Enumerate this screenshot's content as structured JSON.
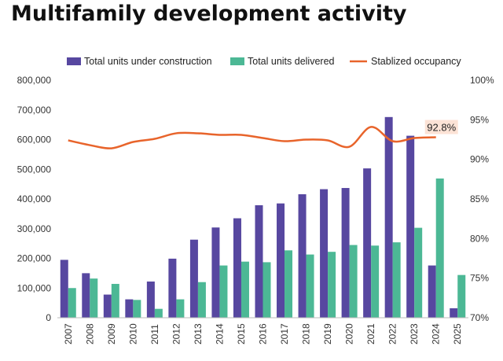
{
  "chart_data": {
    "type": "bar",
    "title": "Multifamily development activity",
    "categories": [
      "2007",
      "2008",
      "2009",
      "2010",
      "2011",
      "2012",
      "2013",
      "2014",
      "2015",
      "2016",
      "2017",
      "2018",
      "2019",
      "2020",
      "2021",
      "2022",
      "2023",
      "2024",
      "2025"
    ],
    "series": [
      {
        "name": "Total units under construction",
        "type": "bar",
        "axis": "left",
        "color": "#5747a0",
        "values": [
          195000,
          150000,
          78000,
          62000,
          122000,
          199000,
          263000,
          304000,
          335000,
          379000,
          385000,
          416000,
          433000,
          437000,
          503000,
          676000,
          613000,
          176000,
          32000
        ]
      },
      {
        "name": "Total units delivered",
        "type": "bar",
        "axis": "left",
        "color": "#4cb895",
        "values": [
          100000,
          132000,
          114000,
          60000,
          30000,
          62000,
          120000,
          176000,
          189000,
          187000,
          227000,
          213000,
          222000,
          245000,
          243000,
          254000,
          303000,
          469000,
          144000
        ]
      },
      {
        "name": "Stablized occupancy",
        "type": "line",
        "axis": "right",
        "color": "#e8642b",
        "values": [
          92.4,
          91.8,
          91.4,
          92.2,
          92.6,
          93.3,
          93.3,
          93.1,
          93.1,
          92.7,
          92.3,
          92.5,
          92.4,
          91.6,
          94.1,
          92.3,
          92.7,
          92.8,
          null
        ]
      }
    ],
    "y_left": {
      "ylim": [
        0,
        800000
      ],
      "ticks": [
        "0",
        "100,000",
        "200,000",
        "300,000",
        "400,000",
        "500,000",
        "600,000",
        "700,000",
        "800,000"
      ]
    },
    "y_right": {
      "ylim": [
        70,
        100
      ],
      "ticks": [
        "70%",
        "75%",
        "80%",
        "85%",
        "90%",
        "95%",
        "100%"
      ]
    },
    "annotation": {
      "text": "92.8%",
      "category": "2024",
      "series": "Stablized occupancy"
    },
    "legend_position": "top",
    "grid": false
  }
}
